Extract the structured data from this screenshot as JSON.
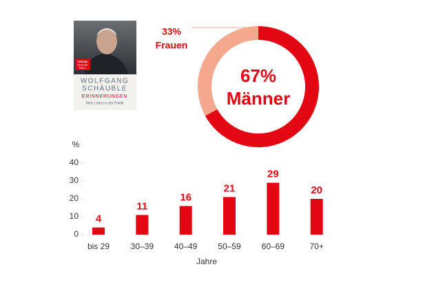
{
  "book": {
    "badge": [
      "SPIEGEL",
      "Bestseller",
      "Platz 1"
    ],
    "author": [
      "WOLFGANG",
      "SCHÄUBLE"
    ],
    "title": "ERINNERUNGEN",
    "subtitle": "Mein Leben in der Politik"
  },
  "chart_data": [
    {
      "type": "donut",
      "categories": [
        "Männer",
        "Frauen"
      ],
      "values": [
        67,
        33
      ],
      "value_labels": [
        "67%",
        "33%"
      ],
      "colors": [
        "#e30613",
        "#f4a88e"
      ]
    },
    {
      "type": "bar",
      "y_label": "%",
      "x_label": "Jahre",
      "categories": [
        "bis 29",
        "30–39",
        "40–49",
        "50–59",
        "60–69",
        "70+"
      ],
      "values": [
        4,
        11,
        16,
        21,
        29,
        20
      ],
      "color": "#e30613",
      "ylim": [
        0,
        40
      ],
      "yticks": [
        0,
        10,
        20,
        30,
        40
      ]
    }
  ]
}
